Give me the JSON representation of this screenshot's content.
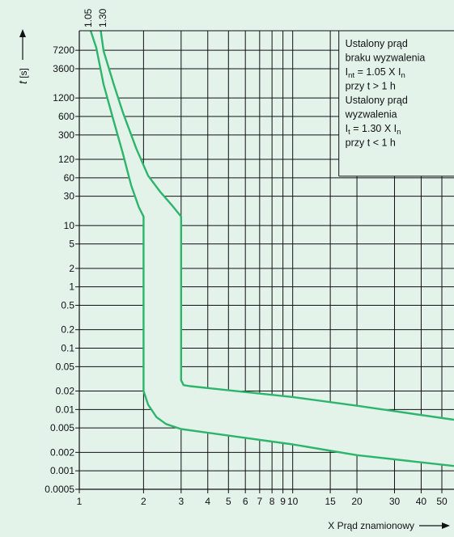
{
  "chart_data": {
    "type": "line",
    "xlabel": "X Prąd znamionowy",
    "ylabel": "t [s]",
    "x_scale": "log",
    "y_scale": "log",
    "xlim": [
      1,
      57
    ],
    "ylim": [
      0.0005,
      15000
    ],
    "x_ticks": [
      1,
      2,
      3,
      4,
      5,
      6,
      7,
      8,
      9,
      10,
      15,
      20,
      30,
      40,
      50
    ],
    "y_ticks": [
      7200,
      3600,
      1200,
      600,
      300,
      120,
      60,
      30,
      10,
      5,
      2,
      1,
      0.5,
      0.2,
      0.1,
      0.05,
      0.02,
      0.01,
      0.005,
      0.002,
      0.001,
      0.0005
    ],
    "x_tick_labels": [
      "1",
      "2",
      "3",
      "4",
      "5",
      "6",
      "7",
      "8",
      "9",
      "10",
      "15",
      "20",
      "30",
      "40",
      "50"
    ],
    "y_tick_labels": [
      "7200",
      "3600",
      "1200",
      "600",
      "300",
      "120",
      "60",
      "30",
      "10",
      "5",
      "2",
      "1",
      "0.5",
      "0.2",
      "0.1",
      "0.05",
      "0.02",
      "0.01",
      "0.005",
      "0.002",
      "0.001",
      "0.0005"
    ],
    "top_labels": [
      "1.05",
      "1.30"
    ],
    "grid": true,
    "line_color": "#2cb56b",
    "band_color": "#e3f3ea",
    "series": [
      {
        "name": "",
        "points": [
          [
            1.13,
            15000
          ],
          [
            1.2,
            8000
          ],
          [
            1.3,
            2000
          ],
          [
            1.45,
            500
          ],
          [
            1.6,
            150
          ],
          [
            1.75,
            45
          ],
          [
            1.9,
            20
          ],
          [
            2.0,
            14
          ],
          [
            2.0,
            0.02
          ],
          [
            2.1,
            0.012
          ],
          [
            2.3,
            0.0075
          ],
          [
            2.55,
            0.0058
          ],
          [
            3.0,
            0.0048
          ],
          [
            10,
            0.0027
          ],
          [
            20,
            0.0018
          ],
          [
            57,
            0.0012
          ]
        ]
      },
      {
        "name": "",
        "points": [
          [
            1.26,
            15000
          ],
          [
            1.3,
            7000
          ],
          [
            1.45,
            2000
          ],
          [
            1.6,
            700
          ],
          [
            1.85,
            180
          ],
          [
            2.1,
            65
          ],
          [
            2.4,
            35
          ],
          [
            2.7,
            22
          ],
          [
            3.0,
            14
          ],
          [
            3.0,
            0.03
          ],
          [
            3.08,
            0.025
          ],
          [
            3.3,
            0.024
          ],
          [
            10,
            0.016
          ],
          [
            20,
            0.0115
          ],
          [
            57,
            0.0068
          ]
        ]
      }
    ],
    "annotation": {
      "lines": [
        [
          {
            "t": "Ustalony prąd"
          }
        ],
        [
          {
            "t": "braku wyzwalenia"
          }
        ],
        [
          {
            "t": "I"
          },
          {
            "t": "nt",
            "sub": true
          },
          {
            "t": " = 1.05 X I"
          },
          {
            "t": "n",
            "sub": true
          }
        ],
        [
          {
            "t": "przy t > 1 h"
          }
        ],
        [
          {
            "t": "Ustalony prąd"
          }
        ],
        [
          {
            "t": "wyzwalenia"
          }
        ],
        [
          {
            "t": "I"
          },
          {
            "t": "t",
            "sub": true
          },
          {
            "t": " = 1.30 X I"
          },
          {
            "t": "n",
            "sub": true
          }
        ],
        [
          {
            "t": "przy t < 1 h"
          }
        ]
      ]
    }
  }
}
